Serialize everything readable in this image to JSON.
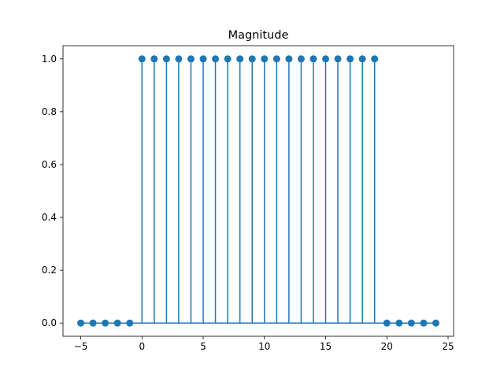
{
  "chart_data": {
    "type": "stem",
    "title": "Magnitude",
    "xlabel": "",
    "ylabel": "",
    "x": [
      -5,
      -4,
      -3,
      -2,
      -1,
      0,
      1,
      2,
      3,
      4,
      5,
      6,
      7,
      8,
      9,
      10,
      11,
      12,
      13,
      14,
      15,
      16,
      17,
      18,
      19,
      20,
      21,
      22,
      23,
      24
    ],
    "values": [
      0,
      0,
      0,
      0,
      0,
      1,
      1,
      1,
      1,
      1,
      1,
      1,
      1,
      1,
      1,
      1,
      1,
      1,
      1,
      1,
      1,
      1,
      1,
      1,
      1,
      0,
      0,
      0,
      0,
      0
    ],
    "xlim": [
      -6.45,
      25.45
    ],
    "ylim": [
      -0.05,
      1.05
    ],
    "xticks": [
      -5,
      0,
      5,
      10,
      15,
      20,
      25
    ],
    "yticks": [
      0.0,
      0.2,
      0.4,
      0.6,
      0.8,
      1.0
    ],
    "xtick_labels": [
      "−5",
      "0",
      "5",
      "10",
      "15",
      "20",
      "25"
    ],
    "ytick_labels": [
      "0.0",
      "0.2",
      "0.4",
      "0.6",
      "0.8",
      "1.0"
    ],
    "grid": false,
    "colors": {
      "stem": "#1f77b4",
      "baseline": "#1f77b4",
      "axes": "#000000"
    }
  }
}
